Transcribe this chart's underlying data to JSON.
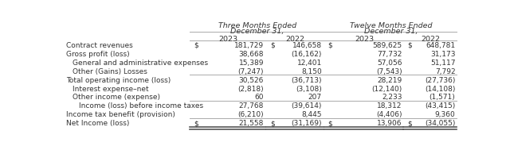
{
  "rows": [
    {
      "label": "Contract revenues",
      "indent": 0,
      "values": [
        "181,729",
        "146,658",
        "589,625",
        "648,781"
      ],
      "dollar_sign": [
        true,
        true,
        true,
        true
      ],
      "line_below": false,
      "double_line_below": false
    },
    {
      "label": "Gross profit (loss)",
      "indent": 0,
      "values": [
        "38,668",
        "(16,162)",
        "77,732",
        "31,173"
      ],
      "dollar_sign": [
        false,
        false,
        false,
        false
      ],
      "line_below": false,
      "double_line_below": false
    },
    {
      "label": "General and administrative expenses",
      "indent": 1,
      "values": [
        "15,389",
        "12,401",
        "57,056",
        "51,117"
      ],
      "dollar_sign": [
        false,
        false,
        false,
        false
      ],
      "line_below": false,
      "double_line_below": false
    },
    {
      "label": "Other (Gains) Losses",
      "indent": 1,
      "values": [
        "(7,247)",
        "8,150",
        "(7,543)",
        "7,792"
      ],
      "dollar_sign": [
        false,
        false,
        false,
        false
      ],
      "line_below": true,
      "double_line_below": false
    },
    {
      "label": "Total operating income (loss)",
      "indent": 0,
      "values": [
        "30,526",
        "(36,713)",
        "28,219",
        "(27,736)"
      ],
      "dollar_sign": [
        false,
        false,
        false,
        false
      ],
      "line_below": false,
      "double_line_below": false
    },
    {
      "label": "Interest expense–net",
      "indent": 1,
      "values": [
        "(2,818)",
        "(3,108)",
        "(12,140)",
        "(14,108)"
      ],
      "dollar_sign": [
        false,
        false,
        false,
        false
      ],
      "line_below": false,
      "double_line_below": false
    },
    {
      "label": "Other income (expense)",
      "indent": 1,
      "values": [
        "60",
        "207",
        "2,233",
        "(1,571)"
      ],
      "dollar_sign": [
        false,
        false,
        false,
        false
      ],
      "line_below": true,
      "double_line_below": false
    },
    {
      "label": "Income (loss) before income taxes",
      "indent": 2,
      "values": [
        "27,768",
        "(39,614)",
        "18,312",
        "(43,415)"
      ],
      "dollar_sign": [
        false,
        false,
        false,
        false
      ],
      "line_below": false,
      "double_line_below": false
    },
    {
      "label": "Income tax benefit (provision)",
      "indent": 0,
      "values": [
        "(6,210)",
        "8,445",
        "(4,406)",
        "9,360"
      ],
      "dollar_sign": [
        false,
        false,
        false,
        false
      ],
      "line_below": true,
      "double_line_below": false
    },
    {
      "label": "Net Income (loss)",
      "indent": 0,
      "values": [
        "21,558",
        "(31,169)",
        "13,906",
        "(34,055)"
      ],
      "dollar_sign": [
        true,
        true,
        true,
        true
      ],
      "line_below": false,
      "double_line_below": true
    }
  ],
  "col_headers": [
    "2023",
    "2022",
    "2023",
    "2022"
  ],
  "group_headers": [
    "Three Months Ended",
    "Twelve Months Ended"
  ],
  "group_sub": [
    "December 31,",
    "December 31,"
  ],
  "bg_color": "#ffffff",
  "text_color": "#333333",
  "line_color": "#aaaaaa",
  "thick_line_color": "#555555",
  "font_size": 6.5,
  "header_font_size": 6.8
}
